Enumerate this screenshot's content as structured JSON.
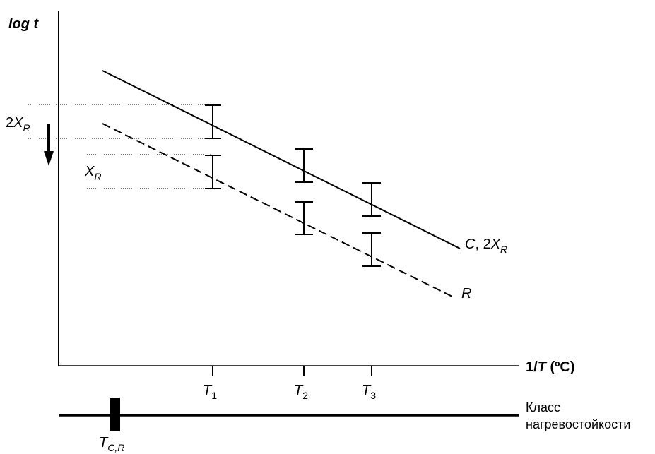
{
  "axis": {
    "y_label": "log t",
    "x_label_prefix": "1/",
    "x_label_var": "T",
    "x_label_unit": " (ºC)"
  },
  "ticks": [
    {
      "name": "T",
      "sub": "1"
    },
    {
      "name": "T",
      "sub": "2"
    },
    {
      "name": "T",
      "sub": "3"
    }
  ],
  "band_labels": {
    "two_xr_coef": "2",
    "two_xr_var": "X",
    "two_xr_sub": "R",
    "xr_var": "X",
    "xr_sub": "R"
  },
  "line_labels": {
    "c_main": "C",
    "c_sep": ", 2",
    "c_var": "X",
    "c_sub": "R",
    "r_label": "R"
  },
  "scale": {
    "class_line1": "Класс",
    "class_line2": "нагревостойкости",
    "marker_var": "T",
    "marker_sub": "C,R"
  },
  "colors": {
    "ink": "#000000",
    "background": "#ffffff"
  }
}
